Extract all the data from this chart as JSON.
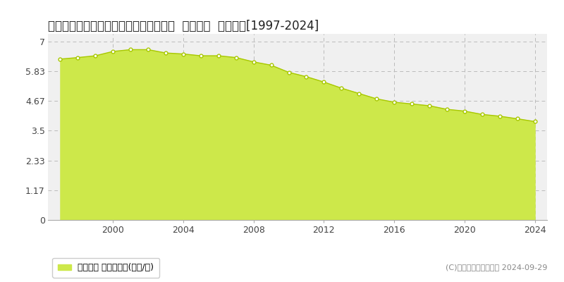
{
  "title": "鳥取県鳥取市上味野字上り立７４番１外  基準地価  地価推移[1997-2024]",
  "years": [
    1997,
    1998,
    1999,
    2000,
    2001,
    2002,
    2003,
    2004,
    2005,
    2006,
    2007,
    2008,
    2009,
    2010,
    2011,
    2012,
    2013,
    2014,
    2015,
    2016,
    2017,
    2018,
    2019,
    2020,
    2021,
    2022,
    2023,
    2024
  ],
  "values": [
    6.31,
    6.37,
    6.44,
    6.61,
    6.68,
    6.68,
    6.55,
    6.51,
    6.44,
    6.44,
    6.37,
    6.2,
    6.07,
    5.79,
    5.62,
    5.41,
    5.17,
    4.96,
    4.75,
    4.62,
    4.55,
    4.48,
    4.34,
    4.27,
    4.14,
    4.07,
    3.97,
    3.86
  ],
  "yticks": [
    0,
    1.17,
    2.33,
    3.5,
    4.67,
    5.83,
    7
  ],
  "ytick_labels": [
    "0",
    "1.17",
    "2.33",
    "3.5",
    "4.67",
    "5.83",
    "7"
  ],
  "xticks": [
    2000,
    2004,
    2008,
    2012,
    2016,
    2020,
    2024
  ],
  "xlim": [
    1996.3,
    2024.7
  ],
  "ylim": [
    0,
    7.3
  ],
  "fill_color": "#cde84a",
  "line_color": "#a8c800",
  "marker_facecolor": "#ffffff",
  "marker_edgecolor": "#a8c800",
  "bg_color": "#ffffff",
  "plot_bg_color": "#f0f0f0",
  "grid_color": "#bbbbbb",
  "legend_label": "基準地価 平均坪単価(万円/坪)",
  "legend_color": "#cde84a",
  "copyright_text": "(C)土地価格ドットコム 2024-09-29",
  "title_fontsize": 12,
  "tick_fontsize": 9,
  "legend_fontsize": 9,
  "copyright_fontsize": 8
}
